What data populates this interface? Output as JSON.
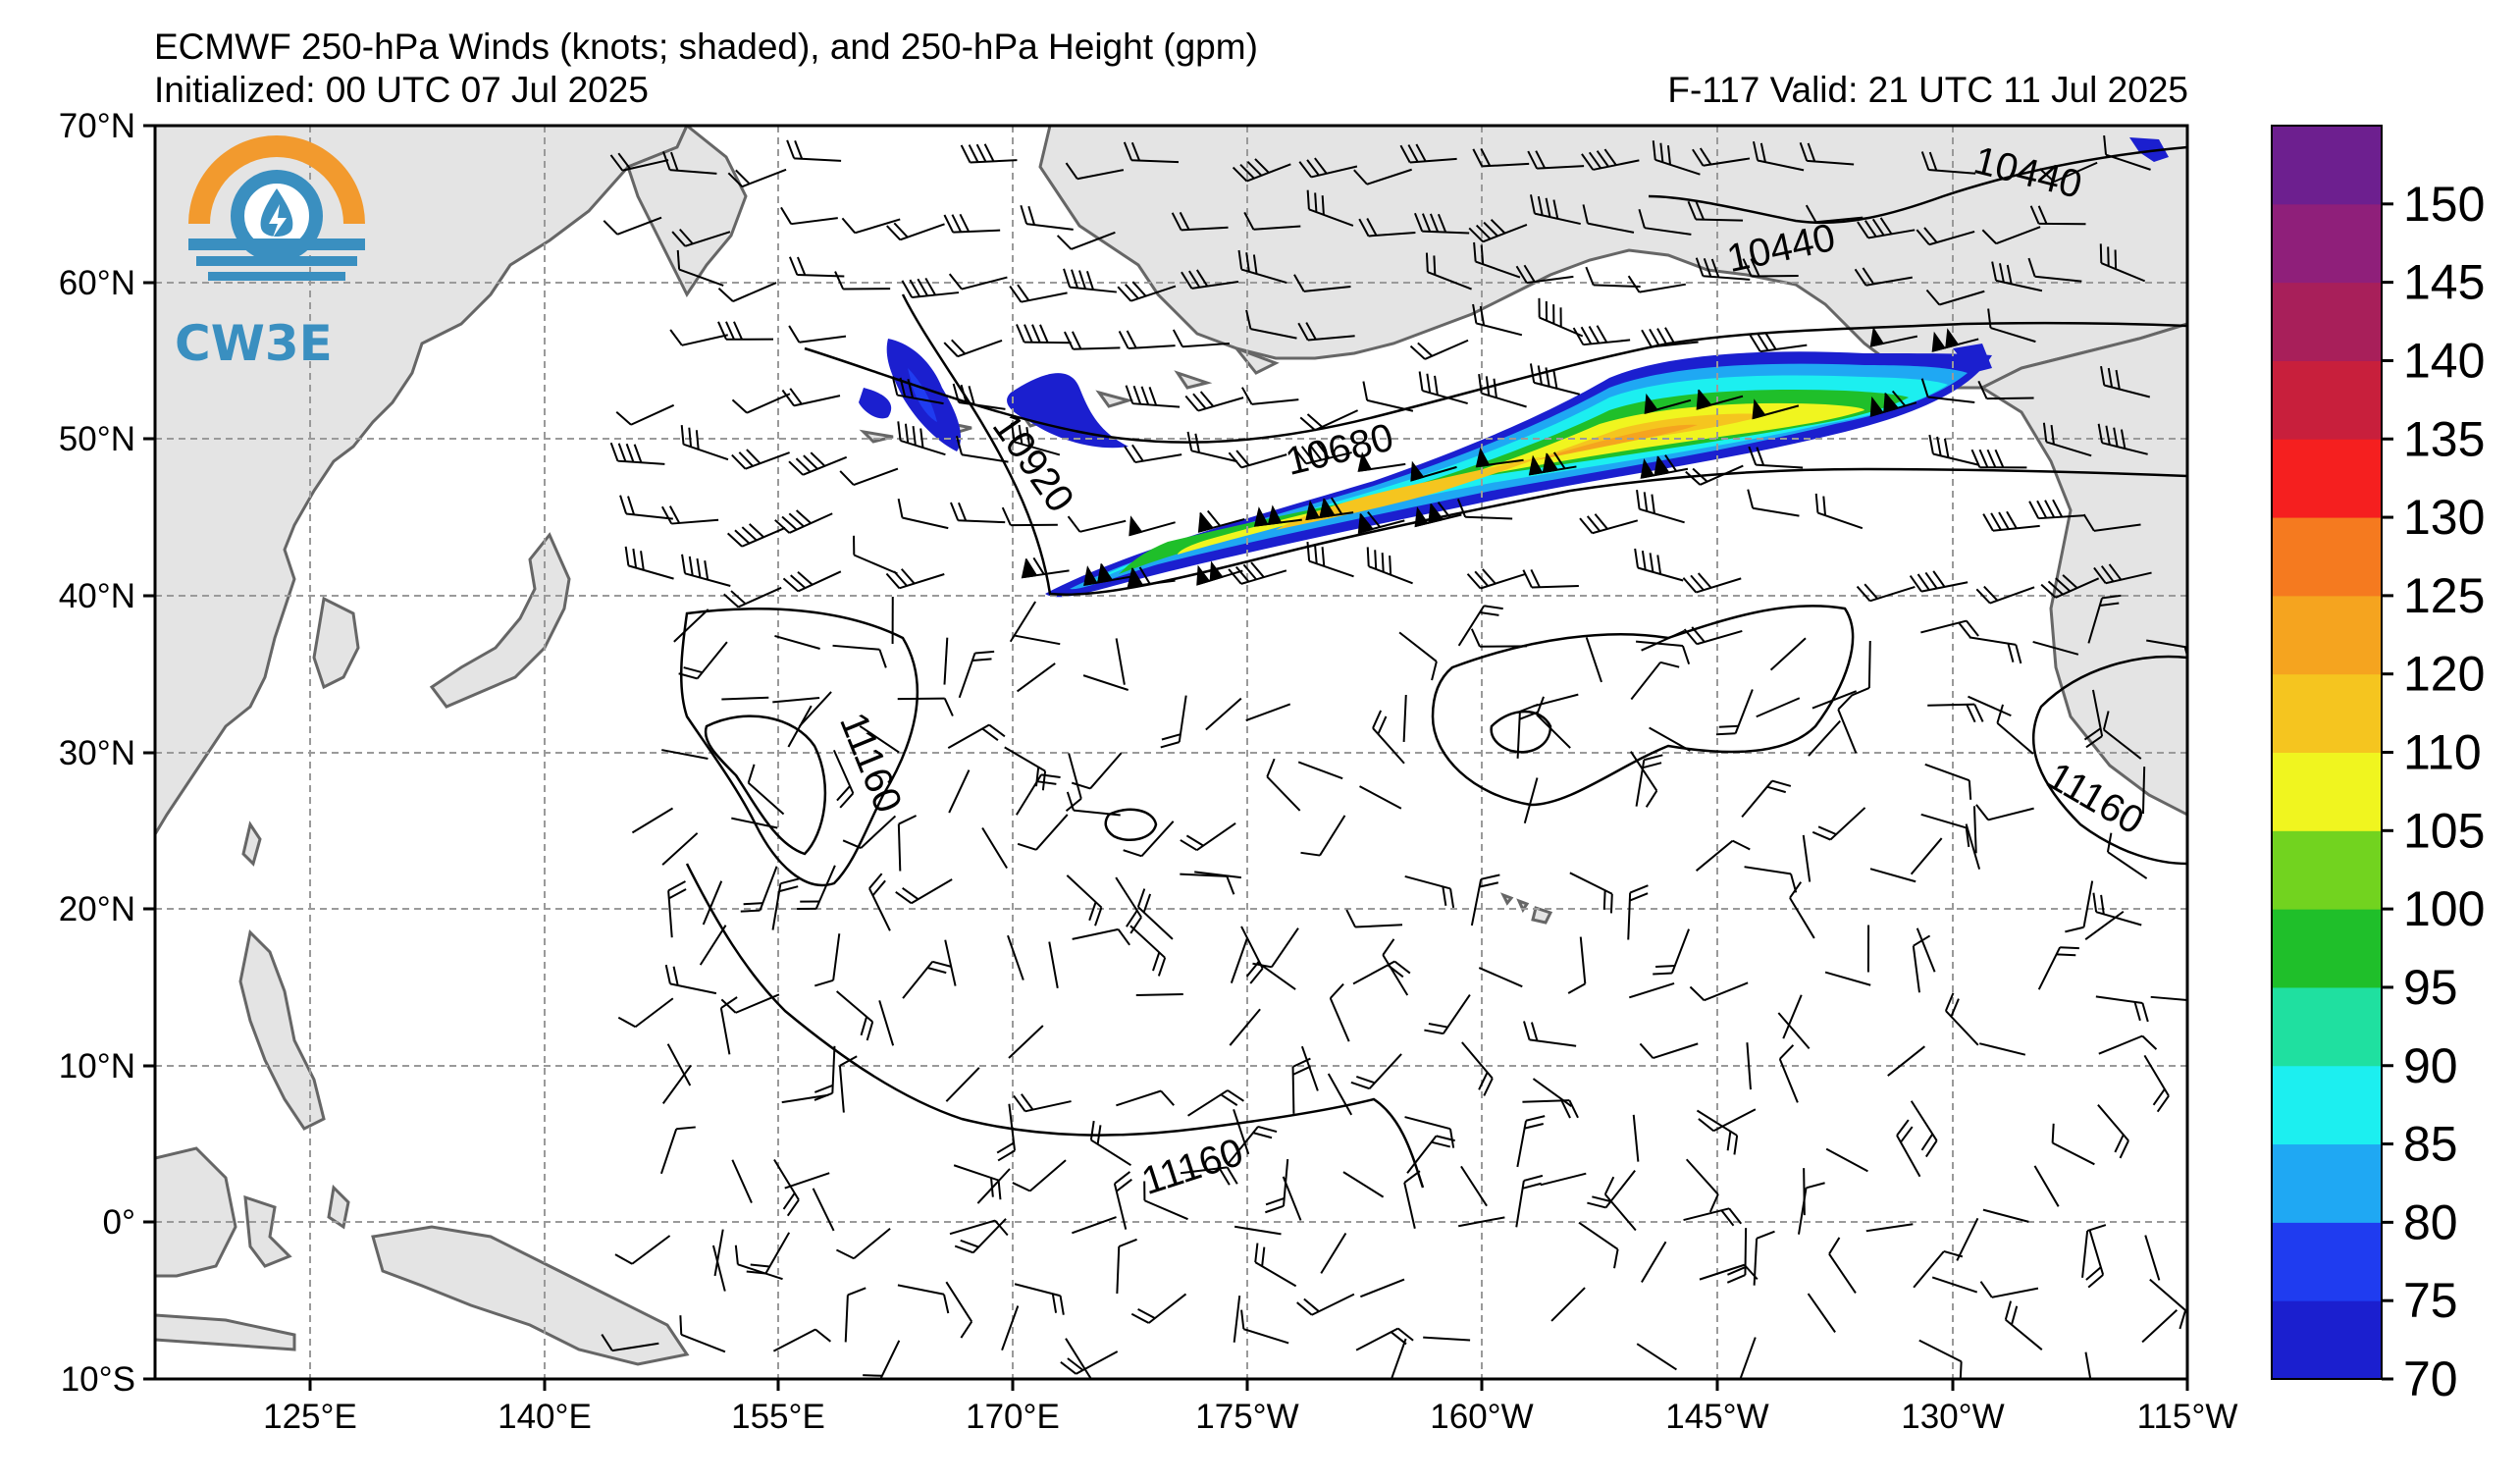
{
  "header": {
    "title": "ECMWF 250-hPa Winds (knots; shaded), and 250-hPa Height (gpm)",
    "initialized": "Initialized: 00 UTC 07 Jul 2025",
    "valid": "F-117  Valid: 21 UTC 11 Jul 2025"
  },
  "logo": {
    "text": "CW3E",
    "colors": {
      "orange": "#f29a2e",
      "blue": "#3a8fc0"
    }
  },
  "axes": {
    "lat_labels": [
      "70°N",
      "60°N",
      "50°N",
      "40°N",
      "30°N",
      "20°N",
      "10°N",
      "0°",
      "10°S"
    ],
    "lon_labels": [
      "125°E",
      "140°E",
      "155°E",
      "170°E",
      "175°W",
      "160°W",
      "145°W",
      "130°W",
      "115°W"
    ]
  },
  "colorbar": {
    "labels": [
      "70",
      "75",
      "80",
      "85",
      "90",
      "95",
      "100",
      "105",
      "110",
      "120",
      "125",
      "130",
      "135",
      "140",
      "145",
      "150"
    ],
    "colors": [
      "#1b1fcf",
      "#1f3cf0",
      "#1fa8f3",
      "#1ceff0",
      "#1fe0a0",
      "#1fbf2a",
      "#72d31f",
      "#f0f51f",
      "#f5c51f",
      "#f5a41f",
      "#f57a1f",
      "#f51f1f",
      "#c81f3c",
      "#a81f5a",
      "#8f1f7a",
      "#6d1f8f"
    ]
  },
  "contours": {
    "labels": [
      "10440",
      "10440",
      "10680",
      "10920",
      "11160",
      "11160",
      "11160"
    ]
  },
  "colors": {
    "land": "#e4e4e4",
    "coast": "#666666",
    "grid": "#9a9a9a"
  }
}
